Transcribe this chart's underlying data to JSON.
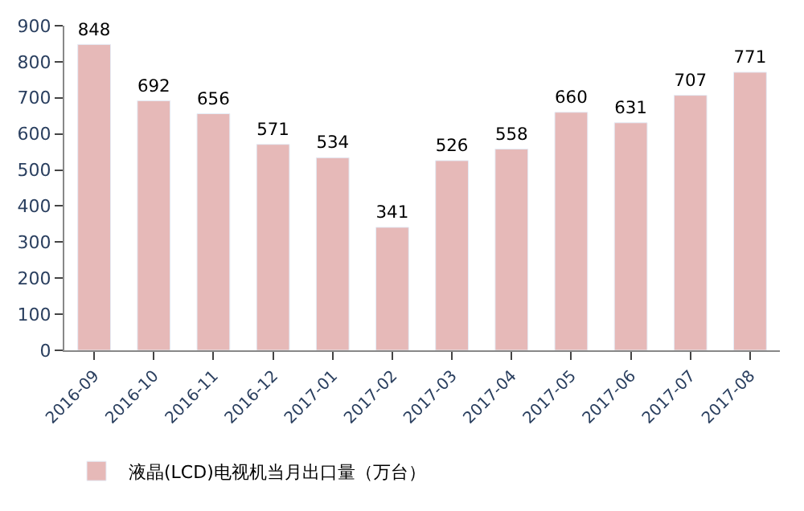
{
  "chart_data": {
    "type": "bar",
    "categories": [
      "2016-09",
      "2016-10",
      "2016-11",
      "2016-12",
      "2017-01",
      "2017-02",
      "2017-03",
      "2017-04",
      "2017-05",
      "2017-06",
      "2017-07",
      "2017-08"
    ],
    "series": [
      {
        "name": "液晶(LCD)电视机当月出口量（万台）",
        "color": "#e6b9b8",
        "values": [
          848,
          692,
          656,
          571,
          534,
          341,
          526,
          558,
          660,
          631,
          707,
          771
        ]
      }
    ],
    "ylim": [
      0,
      900
    ],
    "yticks": [
      0,
      100,
      200,
      300,
      400,
      500,
      600,
      700,
      800,
      900
    ],
    "data_labels": true,
    "legend": "bottom left"
  }
}
